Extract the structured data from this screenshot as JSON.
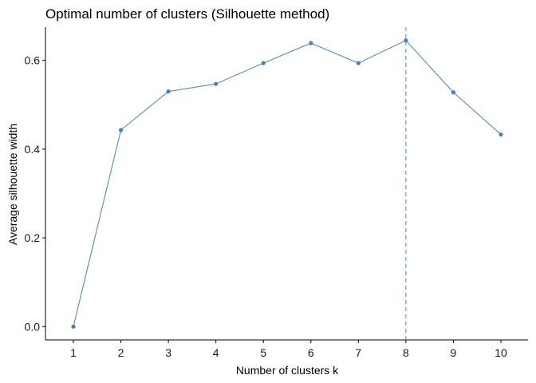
{
  "chart_data": {
    "type": "line",
    "title": "Optimal number of clusters (Silhouette method)",
    "xlabel": "Number of clusters k",
    "ylabel": "Average silhouette width",
    "x": [
      "1",
      "2",
      "3",
      "4",
      "5",
      "6",
      "7",
      "8",
      "9",
      "10"
    ],
    "series": [
      {
        "values": [
          0.0,
          0.443,
          0.53,
          0.547,
          0.594,
          0.639,
          0.594,
          0.645,
          0.528,
          0.433
        ]
      }
    ],
    "yticks": [
      "0.0",
      "0.2",
      "0.4",
      "0.6"
    ],
    "ylim": [
      -0.03,
      0.675
    ],
    "reference_line_x": 8,
    "grid": false,
    "legend": "none",
    "colors": {
      "series": "#4682B4"
    }
  }
}
